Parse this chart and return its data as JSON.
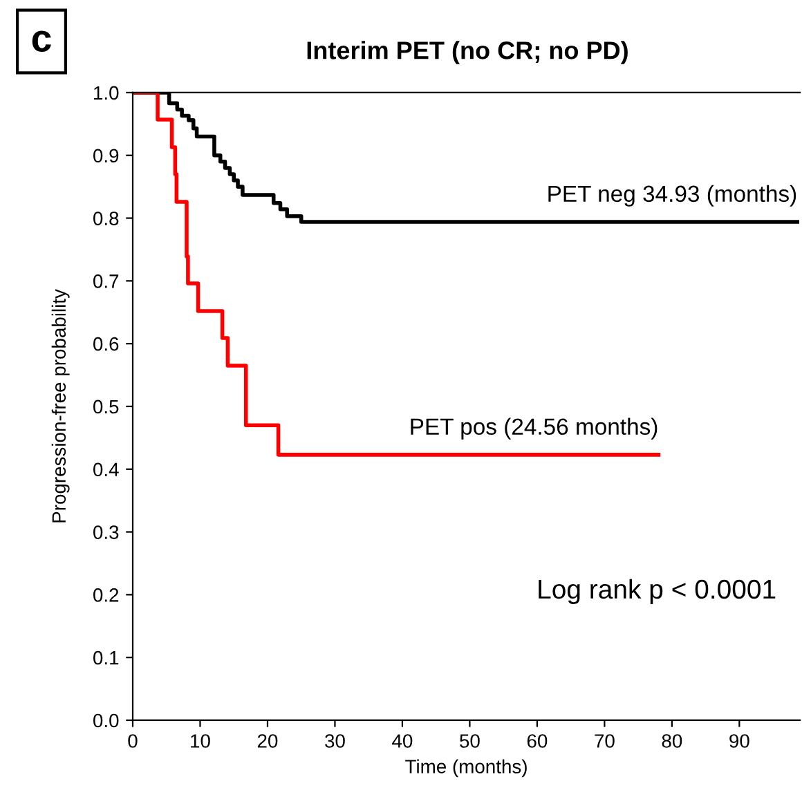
{
  "chart_data": {
    "type": "step",
    "title": "Interim PET (no CR; no PD)",
    "xlabel": "Time (months)",
    "ylabel": "Progression-free probability",
    "series": [
      {
        "name": "PET neg 34.93 (months)",
        "color": "#000000",
        "x": [
          0,
          5.4,
          6.6,
          7.3,
          8.3,
          9.0,
          9.5,
          12.1,
          13.0,
          13.7,
          14.4,
          15.0,
          15.6,
          16.3,
          20.9,
          21.9,
          22.9,
          25.0,
          98.6
        ],
        "values": [
          1.0,
          0.983,
          0.973,
          0.963,
          0.956,
          0.943,
          0.93,
          0.9,
          0.89,
          0.88,
          0.87,
          0.86,
          0.85,
          0.837,
          0.824,
          0.814,
          0.803,
          0.794,
          0.794
        ]
      },
      {
        "name": "PET pos (24.56 months)",
        "color": "#ff0000",
        "x": [
          0,
          3.7,
          5.8,
          6.3,
          6.5,
          8.0,
          8.2,
          9.7,
          13.3,
          14.1,
          16.8,
          21.6,
          78
        ],
        "values": [
          1.0,
          0.957,
          0.913,
          0.87,
          0.826,
          0.739,
          0.696,
          0.652,
          0.609,
          0.565,
          0.47,
          0.423,
          0.423
        ]
      }
    ],
    "annotations": [
      "Log rank p < 0.0001",
      "c"
    ],
    "xlim": [
      0,
      99
    ],
    "ylim": [
      0,
      1.0
    ],
    "xticks": [
      0,
      10,
      20,
      30,
      40,
      50,
      60,
      70,
      80,
      90
    ],
    "yticks": [
      {
        "value": 0,
        "label": "0.0"
      },
      {
        "value": 0.1,
        "label": "0.1"
      },
      {
        "value": 0.2,
        "label": "0.2"
      },
      {
        "value": 0.3,
        "label": "0.3"
      },
      {
        "value": 0.4,
        "label": "0.4"
      },
      {
        "value": 0.5,
        "label": "0.5"
      },
      {
        "value": 0.6,
        "label": "0.6"
      },
      {
        "value": 0.7,
        "label": "0.7"
      },
      {
        "value": 0.8,
        "label": "0.8"
      },
      {
        "value": 0.9,
        "label": "0.9"
      },
      {
        "value": 1.0,
        "label": "1.0"
      }
    ],
    "grid": false,
    "legend": false
  }
}
